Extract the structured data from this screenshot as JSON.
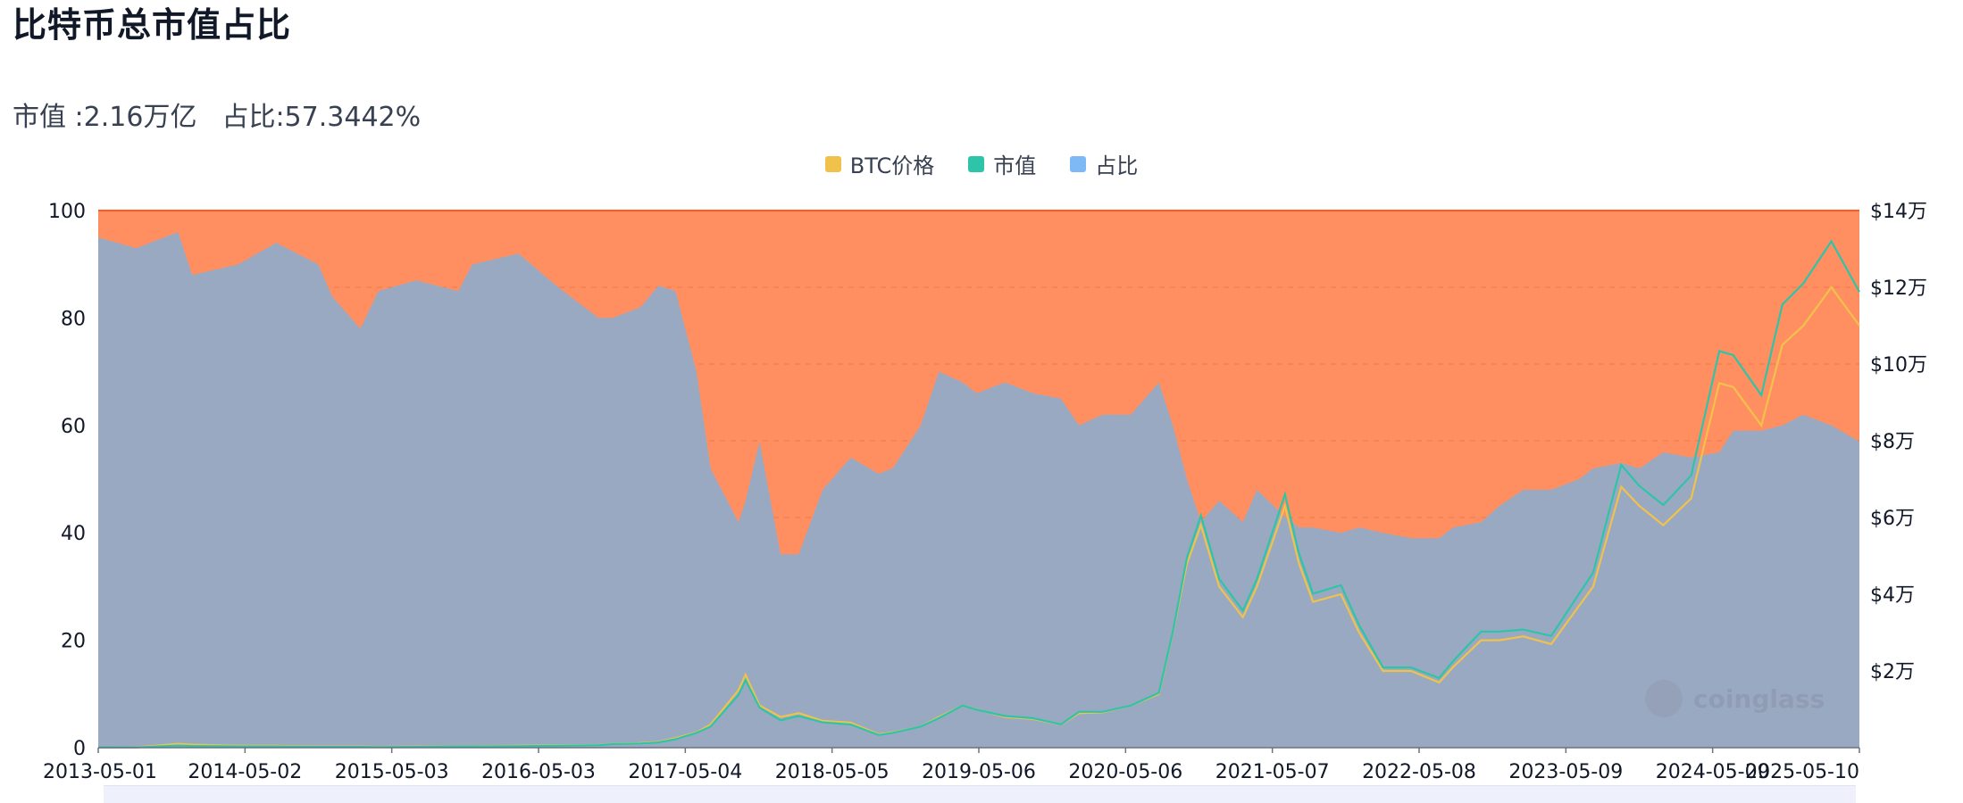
{
  "header": {
    "title": "比特币总市值占比",
    "summary_market_cap": "市值 :2.16万亿",
    "summary_share": "占比:57.3442%"
  },
  "legend": [
    {
      "label": "BTC价格",
      "color": "#f0c24b"
    },
    {
      "label": "市值",
      "color": "#2ec4a8"
    },
    {
      "label": "占比",
      "color": "#7db9f5"
    }
  ],
  "watermark": {
    "text": "coinglass"
  },
  "colors": {
    "share_area": "#9aa9c2",
    "remainder_area": "#ff8f61",
    "top_line": "#ff5a1f",
    "price_line": "#f0c24b",
    "market_cap_line": "#2ec4a8",
    "grid": "#e36b3a"
  },
  "chart_data": {
    "type": "area",
    "x_labels": [
      "2013-05-01",
      "2014-05-02",
      "2015-05-03",
      "2016-05-03",
      "2017-05-04",
      "2018-05-05",
      "2019-05-06",
      "2020-05-06",
      "2021-05-07",
      "2022-05-08",
      "2023-05-09",
      "2024-05-09",
      "2025-05-10"
    ],
    "x": [
      2013.33,
      2013.6,
      2013.9,
      2014.0,
      2014.33,
      2014.6,
      2014.9,
      2015.0,
      2015.2,
      2015.33,
      2015.6,
      2015.9,
      2016.0,
      2016.33,
      2016.6,
      2016.9,
      2017.0,
      2017.2,
      2017.33,
      2017.45,
      2017.6,
      2017.7,
      2017.9,
      2017.95,
      2018.05,
      2018.2,
      2018.33,
      2018.5,
      2018.7,
      2018.9,
      2019.0,
      2019.2,
      2019.33,
      2019.5,
      2019.6,
      2019.8,
      2020.0,
      2020.2,
      2020.33,
      2020.5,
      2020.7,
      2020.9,
      2021.0,
      2021.1,
      2021.2,
      2021.33,
      2021.5,
      2021.6,
      2021.8,
      2021.9,
      2022.0,
      2022.2,
      2022.33,
      2022.5,
      2022.7,
      2022.9,
      2023.0,
      2023.2,
      2023.33,
      2023.5,
      2023.7,
      2023.9,
      2024.0,
      2024.2,
      2024.33,
      2024.5,
      2024.7,
      2024.9,
      2025.0,
      2025.2,
      2025.35,
      2025.5,
      2025.7,
      2025.9
    ],
    "series": [
      {
        "name": "占比",
        "axis": "left",
        "values": [
          95,
          93,
          96,
          88,
          90,
          94,
          90,
          84,
          78,
          85,
          87,
          85,
          90,
          92,
          86,
          80,
          80,
          82,
          86,
          85,
          70,
          52,
          42,
          46,
          57,
          36,
          36,
          48,
          54,
          51,
          52,
          60,
          70,
          68,
          66,
          68,
          66,
          65,
          60,
          62,
          62,
          68,
          60,
          50,
          42,
          46,
          42,
          48,
          43,
          41,
          41,
          40,
          41,
          40,
          39,
          39,
          41,
          42,
          45,
          48,
          48,
          50,
          52,
          53,
          52,
          55,
          54,
          55,
          59,
          59,
          60,
          62,
          60,
          57
        ]
      },
      {
        "name": "BTC价格",
        "axis": "right",
        "unit": "万美元",
        "values": [
          0.01,
          0.01,
          0.1,
          0.08,
          0.05,
          0.05,
          0.03,
          0.03,
          0.03,
          0.02,
          0.03,
          0.04,
          0.04,
          0.05,
          0.06,
          0.07,
          0.1,
          0.12,
          0.15,
          0.25,
          0.4,
          0.6,
          1.5,
          1.9,
          1.1,
          0.8,
          0.9,
          0.7,
          0.65,
          0.35,
          0.4,
          0.55,
          0.8,
          1.1,
          1.0,
          0.8,
          0.75,
          0.6,
          0.9,
          0.92,
          1.1,
          1.4,
          3.0,
          4.8,
          5.8,
          4.2,
          3.4,
          4.2,
          6.3,
          4.8,
          3.8,
          4.0,
          3.0,
          2.0,
          2.0,
          1.7,
          2.1,
          2.8,
          2.8,
          2.9,
          2.7,
          3.7,
          4.2,
          6.8,
          6.3,
          5.8,
          6.5,
          9.5,
          9.4,
          8.4,
          10.5,
          11.0,
          12.0,
          11.0
        ]
      },
      {
        "name": "市值",
        "axis": "right",
        "unit": "万亿美元",
        "values": [
          0.0015,
          0.0012,
          0.01,
          0.008,
          0.006,
          0.006,
          0.004,
          0.004,
          0.004,
          0.003,
          0.004,
          0.006,
          0.006,
          0.007,
          0.009,
          0.012,
          0.017,
          0.02,
          0.025,
          0.04,
          0.07,
          0.1,
          0.25,
          0.32,
          0.19,
          0.13,
          0.15,
          0.12,
          0.11,
          0.06,
          0.07,
          0.1,
          0.14,
          0.2,
          0.18,
          0.15,
          0.14,
          0.11,
          0.17,
          0.17,
          0.2,
          0.26,
          0.55,
          0.9,
          1.1,
          0.8,
          0.65,
          0.8,
          1.2,
          0.92,
          0.73,
          0.77,
          0.58,
          0.38,
          0.38,
          0.33,
          0.41,
          0.55,
          0.55,
          0.56,
          0.53,
          0.73,
          0.83,
          1.34,
          1.24,
          1.15,
          1.29,
          1.88,
          1.86,
          1.67,
          2.1,
          2.2,
          2.4,
          2.16
        ]
      }
    ],
    "ylim_left": [
      0,
      100
    ],
    "yticks_left": [
      "0",
      "20",
      "40",
      "60",
      "80",
      "100"
    ],
    "ylim_right": [
      0,
      14
    ],
    "yticks_right": [
      "$2万",
      "$4万",
      "$6万",
      "$8万",
      "$10万",
      "$12万",
      "$14万"
    ],
    "xlim": [
      2013.33,
      2025.9
    ],
    "grid": true,
    "legend_position": "top-center"
  }
}
